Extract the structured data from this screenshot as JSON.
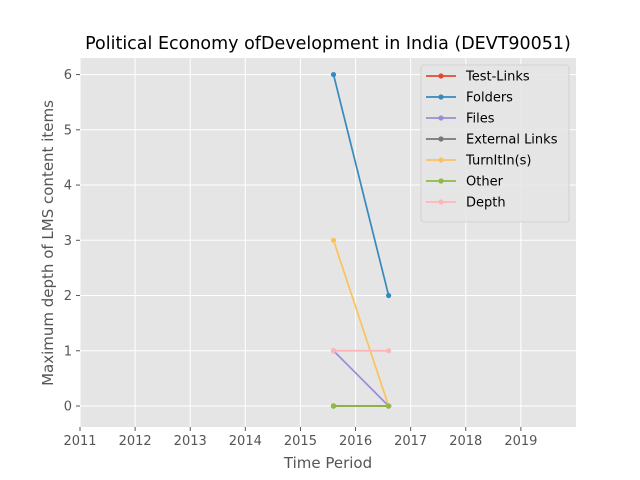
{
  "chart_data": {
    "type": "line",
    "title": "Political Economy ofDevelopment in India (DEVT90051)",
    "xlabel": "Time Period",
    "ylabel": "Maximum depth of LMS content items",
    "xlim": [
      2011,
      2020
    ],
    "ylim": [
      -0.38,
      6.3
    ],
    "x_ticks": [
      "2011",
      "2012",
      "2013",
      "2014",
      "2015",
      "2016",
      "2017",
      "2018",
      "2019"
    ],
    "y_ticks": [
      "0",
      "1",
      "2",
      "3",
      "4",
      "5",
      "6"
    ],
    "grid": true,
    "legend_position": "top-right",
    "series": [
      {
        "name": "Test-Links",
        "color": "#E24A33",
        "x": [
          2015.6,
          2016.6
        ],
        "y": [
          0,
          0
        ]
      },
      {
        "name": "Folders",
        "color": "#348ABD",
        "x": [
          2015.6,
          2016.6
        ],
        "y": [
          6,
          2
        ]
      },
      {
        "name": "Files",
        "color": "#988ED5",
        "x": [
          2015.6,
          2016.6
        ],
        "y": [
          1,
          0
        ]
      },
      {
        "name": "External Links",
        "color": "#777777",
        "x": [
          2015.6,
          2016.6
        ],
        "y": [
          0,
          0
        ]
      },
      {
        "name": "TurnItIn(s)",
        "color": "#FBC15E",
        "x": [
          2015.6,
          2016.6
        ],
        "y": [
          3,
          0
        ]
      },
      {
        "name": "Other",
        "color": "#8EBA42",
        "x": [
          2015.6,
          2016.6
        ],
        "y": [
          0,
          0
        ]
      },
      {
        "name": "Depth",
        "color": "#FFB5B8",
        "x": [
          2015.6,
          2016.6
        ],
        "y": [
          1,
          1
        ]
      }
    ]
  }
}
